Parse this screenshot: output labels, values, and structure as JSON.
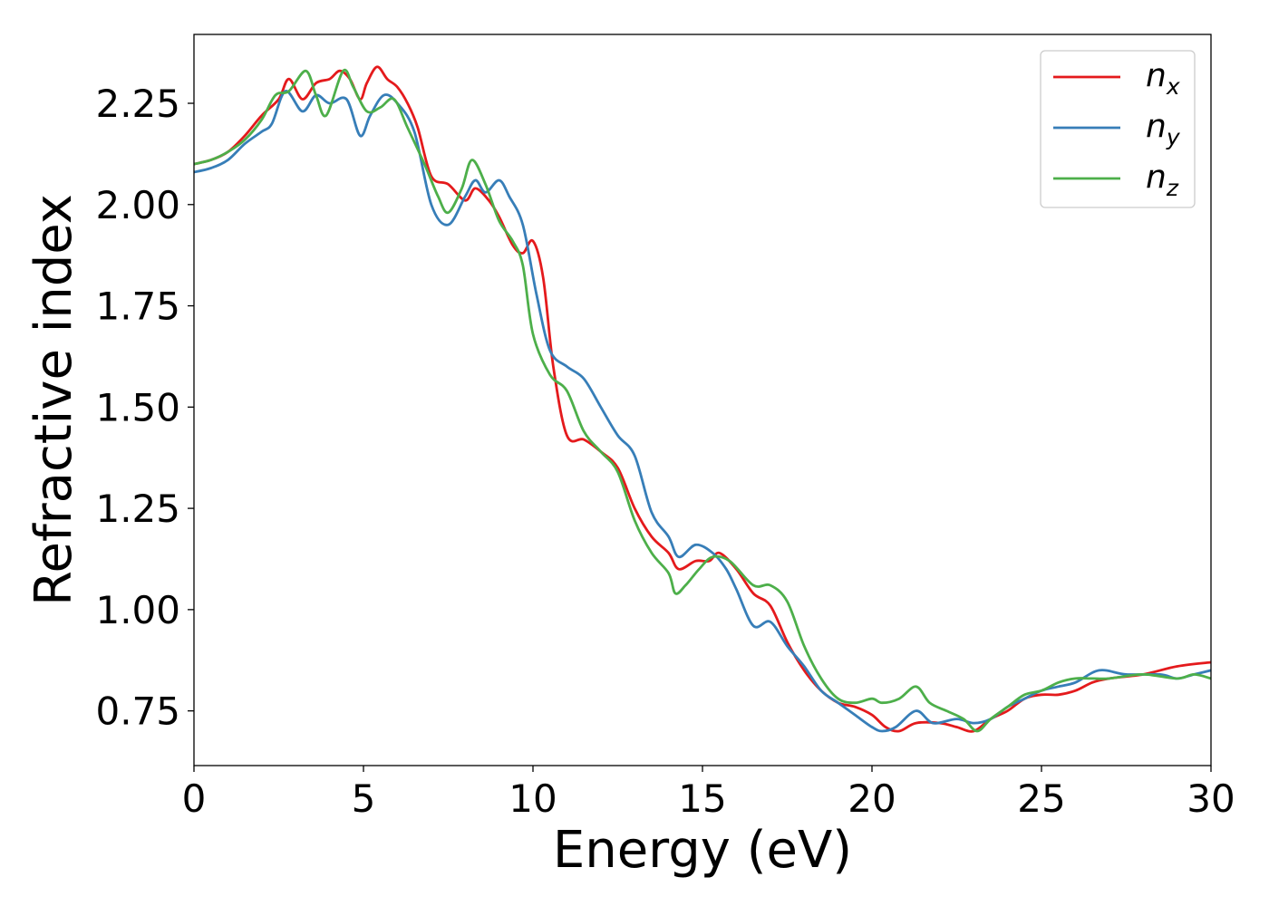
{
  "chart_data": {
    "type": "line",
    "title": "",
    "xlabel": "Energy (eV)",
    "ylabel": "Refractive index",
    "xlim": [
      0,
      30
    ],
    "ylim": [
      0.615,
      2.42
    ],
    "xticks": [
      0,
      5,
      10,
      15,
      20,
      25,
      30
    ],
    "xtick_labels": [
      "0",
      "5",
      "10",
      "15",
      "20",
      "25",
      "30"
    ],
    "yticks": [
      0.75,
      1.0,
      1.25,
      1.5,
      1.75,
      2.0,
      2.25
    ],
    "ytick_labels": [
      "0.75",
      "1.00",
      "1.25",
      "1.50",
      "1.75",
      "2.00",
      "2.25"
    ],
    "grid": false,
    "legend_position": "top-right",
    "series": [
      {
        "name": "n_x",
        "label_base": "n",
        "label_sub": "x",
        "color": "#e41a1c",
        "points": [
          [
            0,
            2.1
          ],
          [
            0.5,
            2.11
          ],
          [
            1,
            2.13
          ],
          [
            1.5,
            2.17
          ],
          [
            2,
            2.22
          ],
          [
            2.5,
            2.26
          ],
          [
            2.8,
            2.31
          ],
          [
            3.2,
            2.26
          ],
          [
            3.6,
            2.3
          ],
          [
            4,
            2.31
          ],
          [
            4.3,
            2.33
          ],
          [
            4.6,
            2.31
          ],
          [
            4.9,
            2.26
          ],
          [
            5.1,
            2.3
          ],
          [
            5.4,
            2.34
          ],
          [
            5.7,
            2.31
          ],
          [
            6,
            2.29
          ],
          [
            6.3,
            2.25
          ],
          [
            6.6,
            2.19
          ],
          [
            7,
            2.07
          ],
          [
            7.5,
            2.05
          ],
          [
            8,
            2.01
          ],
          [
            8.3,
            2.04
          ],
          [
            8.7,
            2.01
          ],
          [
            9,
            1.97
          ],
          [
            9.4,
            1.9
          ],
          [
            9.7,
            1.88
          ],
          [
            10,
            1.91
          ],
          [
            10.3,
            1.82
          ],
          [
            10.6,
            1.6
          ],
          [
            11,
            1.43
          ],
          [
            11.5,
            1.42
          ],
          [
            12,
            1.39
          ],
          [
            12.5,
            1.35
          ],
          [
            13,
            1.25
          ],
          [
            13.5,
            1.18
          ],
          [
            14,
            1.14
          ],
          [
            14.3,
            1.1
          ],
          [
            14.8,
            1.12
          ],
          [
            15.2,
            1.12
          ],
          [
            15.5,
            1.14
          ],
          [
            16,
            1.1
          ],
          [
            16.5,
            1.04
          ],
          [
            17,
            1.01
          ],
          [
            17.5,
            0.92
          ],
          [
            18,
            0.85
          ],
          [
            18.5,
            0.8
          ],
          [
            19,
            0.77
          ],
          [
            19.5,
            0.76
          ],
          [
            20,
            0.74
          ],
          [
            20.4,
            0.71
          ],
          [
            20.8,
            0.7
          ],
          [
            21.3,
            0.72
          ],
          [
            22,
            0.72
          ],
          [
            22.5,
            0.71
          ],
          [
            23,
            0.7
          ],
          [
            23.5,
            0.73
          ],
          [
            24,
            0.75
          ],
          [
            24.5,
            0.78
          ],
          [
            25,
            0.79
          ],
          [
            25.5,
            0.79
          ],
          [
            26,
            0.8
          ],
          [
            26.5,
            0.82
          ],
          [
            27,
            0.83
          ],
          [
            28,
            0.84
          ],
          [
            29,
            0.86
          ],
          [
            30,
            0.87
          ]
        ]
      },
      {
        "name": "n_y",
        "label_base": "n",
        "label_sub": "y",
        "color": "#377eb8",
        "points": [
          [
            0,
            2.08
          ],
          [
            0.5,
            2.09
          ],
          [
            1,
            2.11
          ],
          [
            1.5,
            2.15
          ],
          [
            2,
            2.18
          ],
          [
            2.3,
            2.2
          ],
          [
            2.7,
            2.28
          ],
          [
            3.2,
            2.23
          ],
          [
            3.6,
            2.27
          ],
          [
            4,
            2.25
          ],
          [
            4.5,
            2.26
          ],
          [
            4.9,
            2.17
          ],
          [
            5.2,
            2.22
          ],
          [
            5.6,
            2.27
          ],
          [
            6,
            2.25
          ],
          [
            6.5,
            2.18
          ],
          [
            7,
            2.0
          ],
          [
            7.5,
            1.95
          ],
          [
            8,
            2.02
          ],
          [
            8.3,
            2.06
          ],
          [
            8.6,
            2.03
          ],
          [
            9,
            2.06
          ],
          [
            9.3,
            2.02
          ],
          [
            9.7,
            1.95
          ],
          [
            10.1,
            1.78
          ],
          [
            10.5,
            1.64
          ],
          [
            11,
            1.6
          ],
          [
            11.5,
            1.57
          ],
          [
            12,
            1.5
          ],
          [
            12.5,
            1.43
          ],
          [
            13,
            1.38
          ],
          [
            13.5,
            1.24
          ],
          [
            14,
            1.18
          ],
          [
            14.3,
            1.13
          ],
          [
            14.8,
            1.16
          ],
          [
            15.3,
            1.14
          ],
          [
            15.7,
            1.1
          ],
          [
            16,
            1.05
          ],
          [
            16.5,
            0.96
          ],
          [
            17,
            0.97
          ],
          [
            17.5,
            0.91
          ],
          [
            18,
            0.86
          ],
          [
            18.5,
            0.8
          ],
          [
            19,
            0.77
          ],
          [
            19.5,
            0.74
          ],
          [
            20,
            0.71
          ],
          [
            20.3,
            0.7
          ],
          [
            20.7,
            0.71
          ],
          [
            21.3,
            0.75
          ],
          [
            21.8,
            0.72
          ],
          [
            22.5,
            0.73
          ],
          [
            23,
            0.72
          ],
          [
            23.5,
            0.73
          ],
          [
            24,
            0.76
          ],
          [
            24.5,
            0.78
          ],
          [
            25,
            0.8
          ],
          [
            25.5,
            0.81
          ],
          [
            26,
            0.82
          ],
          [
            26.7,
            0.85
          ],
          [
            27.5,
            0.84
          ],
          [
            28.5,
            0.84
          ],
          [
            29,
            0.83
          ],
          [
            29.5,
            0.84
          ],
          [
            30,
            0.85
          ]
        ]
      },
      {
        "name": "n_z",
        "label_base": "n",
        "label_sub": "z",
        "color": "#4daf4a",
        "points": [
          [
            0,
            2.1
          ],
          [
            0.5,
            2.11
          ],
          [
            1,
            2.13
          ],
          [
            1.5,
            2.16
          ],
          [
            2,
            2.21
          ],
          [
            2.4,
            2.27
          ],
          [
            2.8,
            2.28
          ],
          [
            3.3,
            2.33
          ],
          [
            3.6,
            2.27
          ],
          [
            3.9,
            2.22
          ],
          [
            4.4,
            2.33
          ],
          [
            4.7,
            2.29
          ],
          [
            5.1,
            2.23
          ],
          [
            5.5,
            2.24
          ],
          [
            5.9,
            2.26
          ],
          [
            6.3,
            2.19
          ],
          [
            6.8,
            2.1
          ],
          [
            7.2,
            2.02
          ],
          [
            7.5,
            1.98
          ],
          [
            7.9,
            2.04
          ],
          [
            8.2,
            2.11
          ],
          [
            8.6,
            2.05
          ],
          [
            9,
            1.96
          ],
          [
            9.4,
            1.91
          ],
          [
            9.7,
            1.85
          ],
          [
            10,
            1.68
          ],
          [
            10.5,
            1.58
          ],
          [
            11,
            1.54
          ],
          [
            11.5,
            1.44
          ],
          [
            12,
            1.39
          ],
          [
            12.5,
            1.34
          ],
          [
            13,
            1.22
          ],
          [
            13.5,
            1.14
          ],
          [
            14,
            1.09
          ],
          [
            14.2,
            1.04
          ],
          [
            14.5,
            1.06
          ],
          [
            14.9,
            1.1
          ],
          [
            15.3,
            1.13
          ],
          [
            15.8,
            1.12
          ],
          [
            16.5,
            1.06
          ],
          [
            17,
            1.06
          ],
          [
            17.5,
            1.02
          ],
          [
            18,
            0.91
          ],
          [
            18.5,
            0.83
          ],
          [
            19,
            0.78
          ],
          [
            19.5,
            0.77
          ],
          [
            20,
            0.78
          ],
          [
            20.3,
            0.77
          ],
          [
            20.8,
            0.78
          ],
          [
            21.3,
            0.81
          ],
          [
            21.7,
            0.77
          ],
          [
            22.2,
            0.75
          ],
          [
            22.7,
            0.73
          ],
          [
            23.1,
            0.7
          ],
          [
            23.5,
            0.73
          ],
          [
            24,
            0.76
          ],
          [
            24.5,
            0.79
          ],
          [
            25,
            0.8
          ],
          [
            25.5,
            0.82
          ],
          [
            26,
            0.83
          ],
          [
            26.5,
            0.83
          ],
          [
            27,
            0.83
          ],
          [
            28,
            0.84
          ],
          [
            29,
            0.83
          ],
          [
            29.5,
            0.84
          ],
          [
            30,
            0.83
          ]
        ]
      }
    ]
  }
}
